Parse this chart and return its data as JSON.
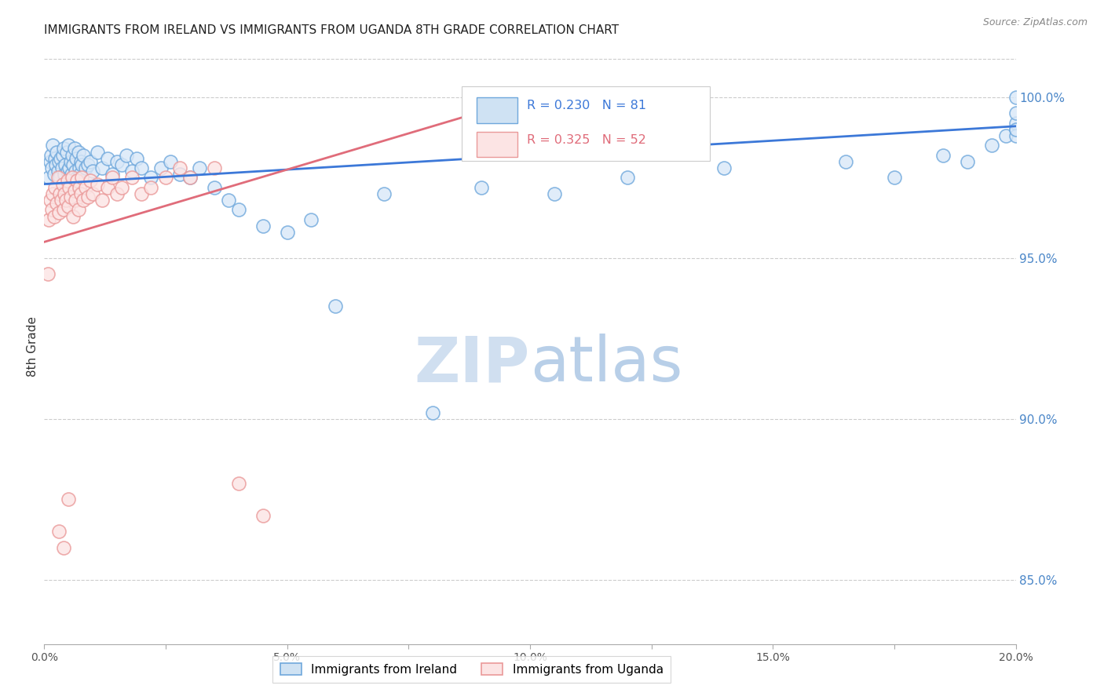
{
  "title": "IMMIGRANTS FROM IRELAND VS IMMIGRANTS FROM UGANDA 8TH GRADE CORRELATION CHART",
  "source": "Source: ZipAtlas.com",
  "ylabel": "8th Grade",
  "xlim": [
    0.0,
    20.0
  ],
  "ylim": [
    83.0,
    101.5
  ],
  "xticks": [
    0.0,
    2.5,
    5.0,
    7.5,
    10.0,
    12.5,
    15.0,
    17.5,
    20.0
  ],
  "xtick_labels": [
    "0.0%",
    "",
    "5.0%",
    "",
    "10.0%",
    "",
    "15.0%",
    "",
    "20.0%"
  ],
  "yticks_right": [
    85.0,
    90.0,
    95.0,
    100.0
  ],
  "ytick_right_labels": [
    "85.0%",
    "90.0%",
    "95.0%",
    "100.0%"
  ],
  "ireland_color": "#6fa8dc",
  "uganda_color": "#ea9999",
  "ireland_line_color": "#3c78d8",
  "uganda_line_color": "#e06c7a",
  "ireland_R": 0.23,
  "ireland_N": 81,
  "uganda_R": 0.325,
  "uganda_N": 52,
  "watermark_zip": "ZIP",
  "watermark_atlas": "atlas",
  "background_color": "#ffffff",
  "grid_color": "#cccccc",
  "right_axis_color": "#4a86c8",
  "title_fontsize": 11,
  "ireland_x": [
    0.1,
    0.12,
    0.14,
    0.16,
    0.18,
    0.2,
    0.22,
    0.24,
    0.26,
    0.28,
    0.3,
    0.32,
    0.34,
    0.36,
    0.38,
    0.4,
    0.42,
    0.44,
    0.46,
    0.48,
    0.5,
    0.52,
    0.54,
    0.56,
    0.58,
    0.6,
    0.62,
    0.64,
    0.66,
    0.68,
    0.7,
    0.72,
    0.74,
    0.76,
    0.78,
    0.8,
    0.85,
    0.9,
    0.95,
    1.0,
    1.1,
    1.2,
    1.3,
    1.4,
    1.5,
    1.6,
    1.7,
    1.8,
    1.9,
    2.0,
    2.2,
    2.4,
    2.6,
    2.8,
    3.0,
    3.2,
    3.5,
    3.8,
    4.0,
    4.5,
    5.0,
    5.5,
    6.0,
    7.0,
    8.0,
    9.0,
    10.5,
    12.0,
    14.0,
    16.5,
    17.5,
    18.5,
    19.0,
    19.5,
    19.8,
    20.0,
    20.0,
    20.0,
    20.0,
    20.0,
    20.0
  ],
  "ireland_y": [
    97.5,
    98.0,
    98.2,
    97.8,
    98.5,
    97.6,
    98.1,
    97.9,
    98.3,
    97.7,
    98.0,
    97.5,
    98.1,
    97.8,
    98.2,
    98.4,
    97.6,
    97.9,
    98.3,
    97.7,
    98.5,
    97.8,
    98.0,
    97.6,
    98.2,
    97.9,
    98.4,
    97.7,
    98.1,
    97.5,
    98.3,
    97.8,
    97.6,
    98.0,
    97.9,
    98.2,
    97.8,
    97.9,
    98.0,
    97.7,
    98.3,
    97.8,
    98.1,
    97.6,
    98.0,
    97.9,
    98.2,
    97.7,
    98.1,
    97.8,
    97.5,
    97.8,
    98.0,
    97.6,
    97.5,
    97.8,
    97.2,
    96.8,
    96.5,
    96.0,
    95.8,
    96.2,
    93.5,
    97.0,
    90.2,
    97.2,
    97.0,
    97.5,
    97.8,
    98.0,
    97.5,
    98.2,
    98.0,
    98.5,
    98.8,
    99.0,
    99.2,
    98.8,
    99.5,
    99.0,
    100.0
  ],
  "uganda_x": [
    0.08,
    0.1,
    0.12,
    0.15,
    0.18,
    0.2,
    0.22,
    0.25,
    0.28,
    0.3,
    0.32,
    0.35,
    0.38,
    0.4,
    0.42,
    0.45,
    0.48,
    0.5,
    0.52,
    0.55,
    0.58,
    0.6,
    0.62,
    0.65,
    0.68,
    0.7,
    0.72,
    0.75,
    0.78,
    0.8,
    0.85,
    0.9,
    0.95,
    1.0,
    1.1,
    1.2,
    1.3,
    1.4,
    1.5,
    1.6,
    1.8,
    2.0,
    2.2,
    2.5,
    2.8,
    3.0,
    3.5,
    4.0,
    4.5,
    0.3,
    0.4,
    0.5
  ],
  "uganda_y": [
    94.5,
    96.2,
    96.8,
    96.5,
    97.0,
    96.3,
    97.2,
    96.7,
    97.5,
    96.4,
    97.0,
    96.8,
    97.3,
    96.5,
    97.0,
    96.8,
    97.4,
    96.6,
    97.2,
    96.9,
    97.5,
    96.3,
    97.1,
    96.8,
    97.4,
    96.5,
    97.2,
    97.0,
    97.5,
    96.8,
    97.2,
    96.9,
    97.4,
    97.0,
    97.3,
    96.8,
    97.2,
    97.5,
    97.0,
    97.2,
    97.5,
    97.0,
    97.2,
    97.5,
    97.8,
    97.5,
    97.8,
    88.0,
    87.0,
    86.5,
    86.0,
    87.5
  ]
}
